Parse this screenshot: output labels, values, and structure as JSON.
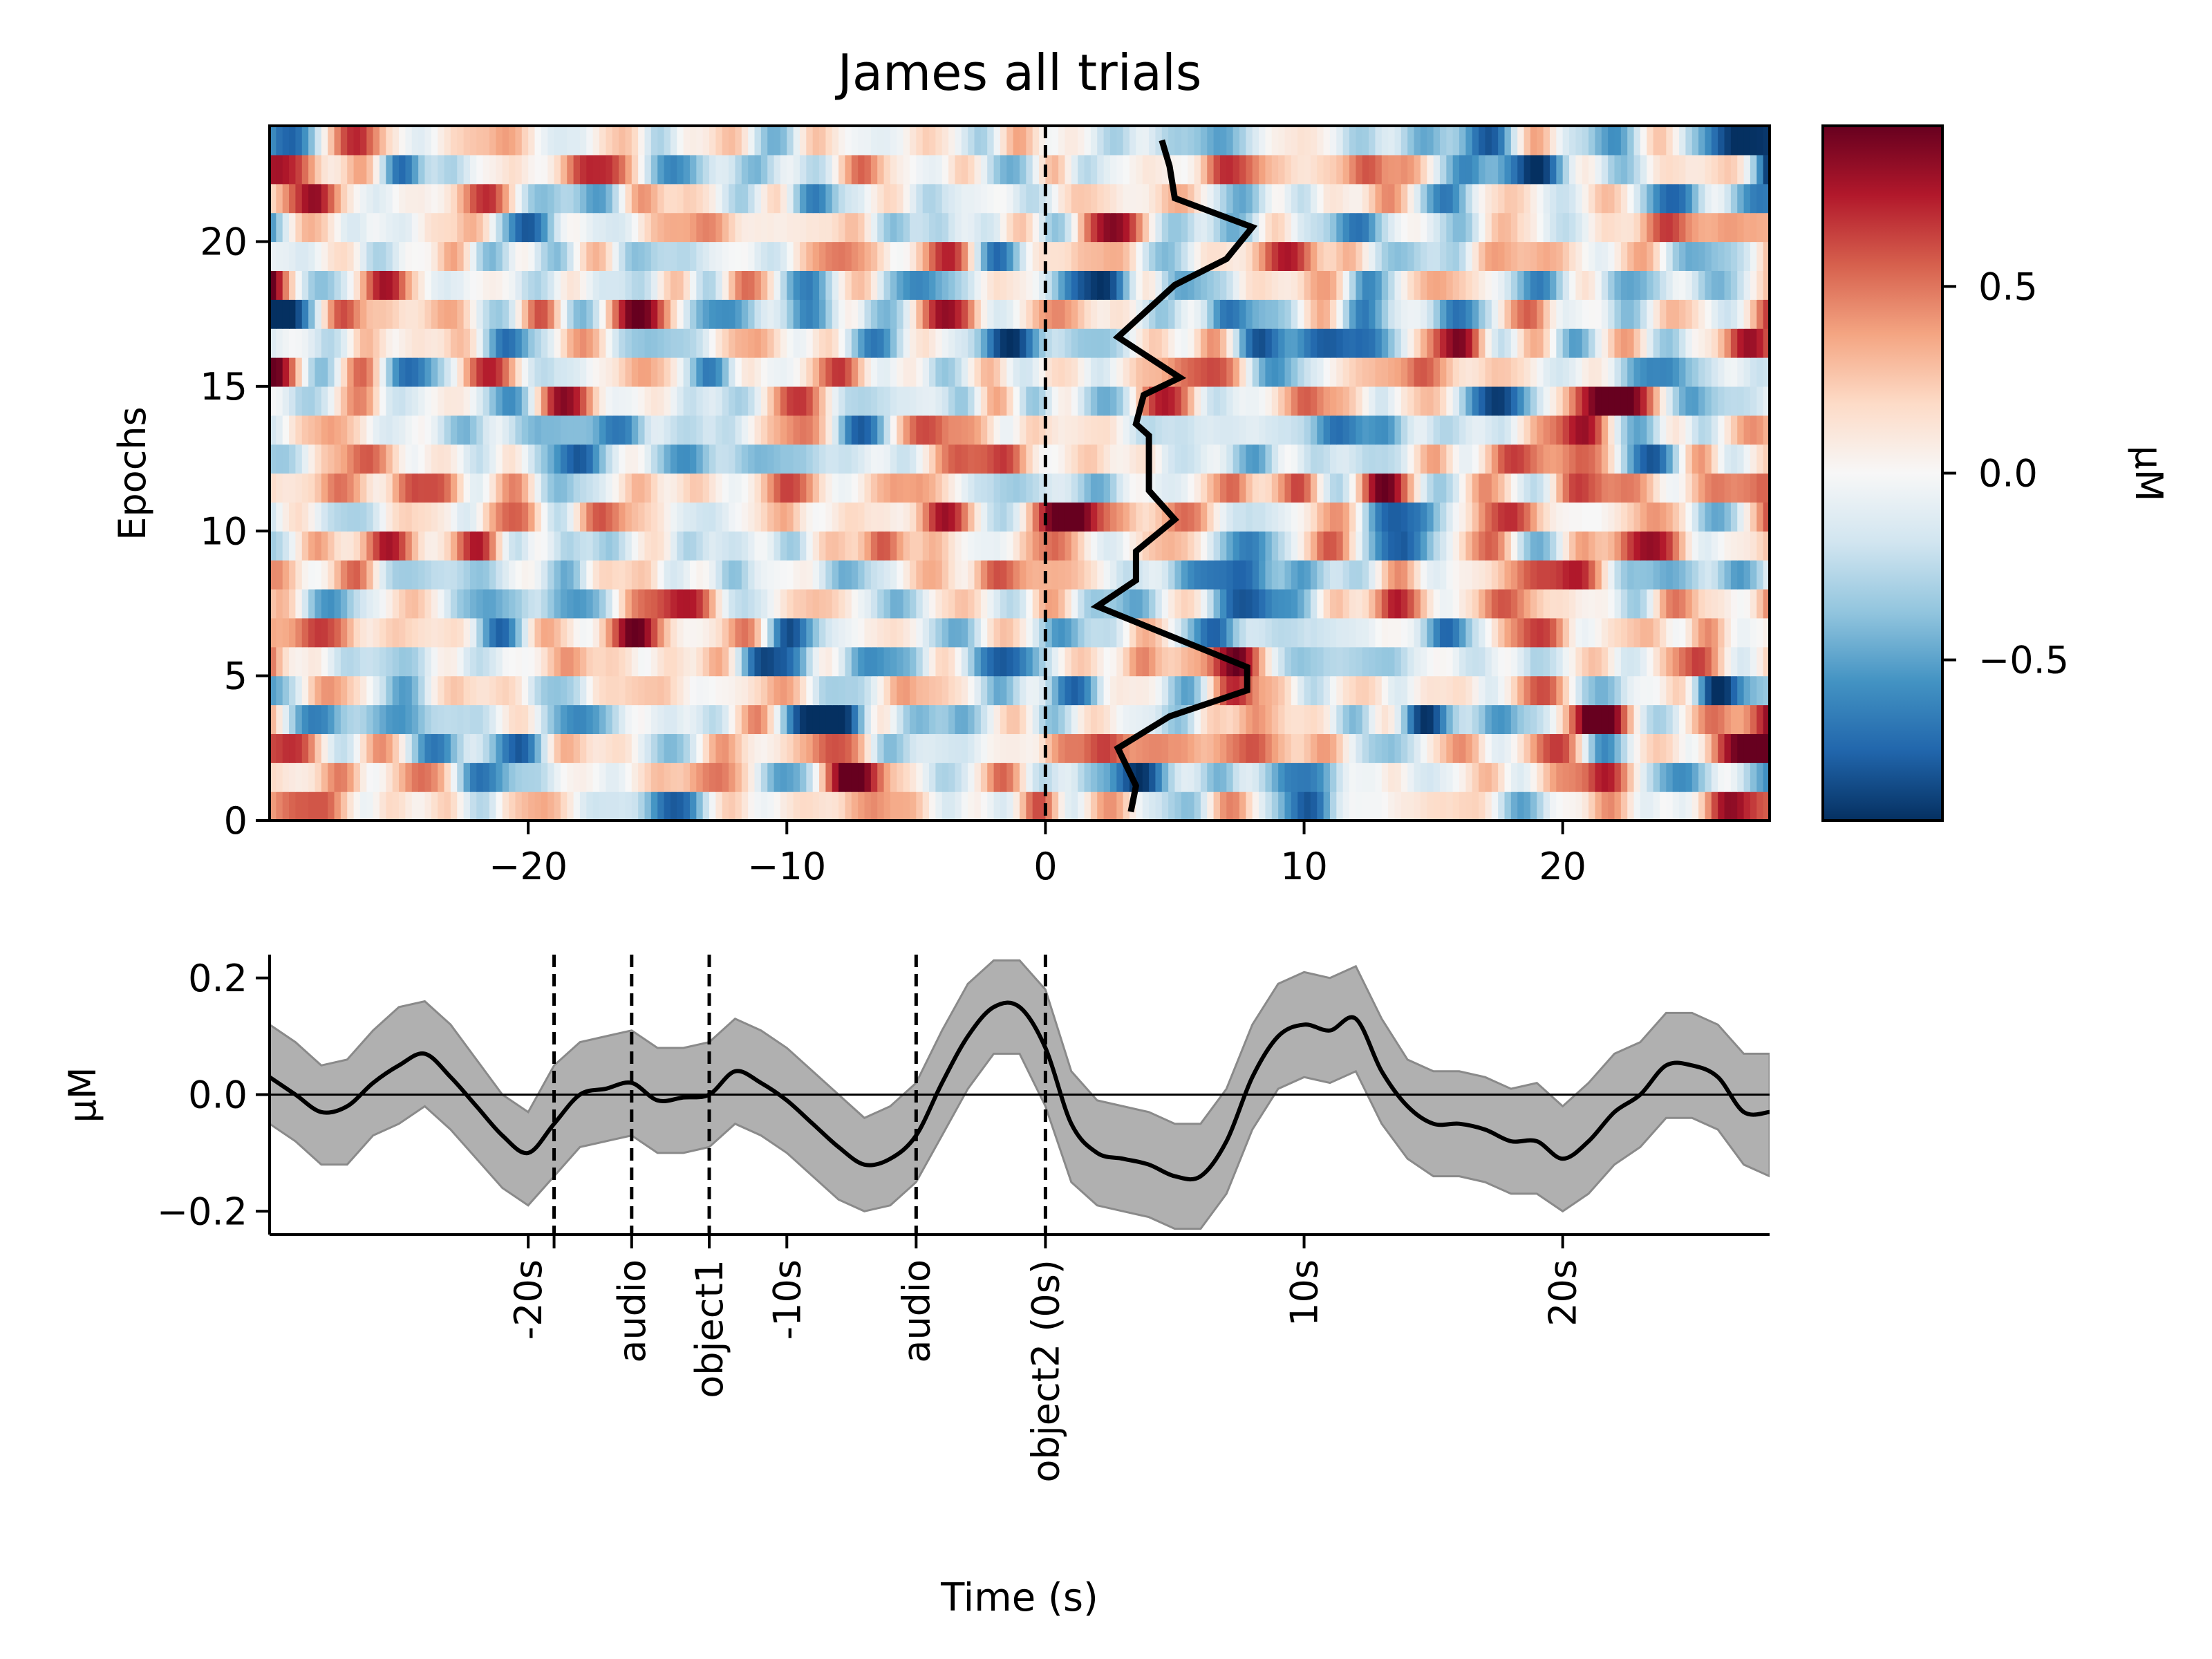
{
  "chart_data": [
    {
      "type": "heatmap",
      "title": "James all trials",
      "xlabel": "",
      "ylabel": "Epochs",
      "xlim": [
        -30,
        28
      ],
      "ylim": [
        0,
        24
      ],
      "x_ticks": [
        -20,
        -10,
        0,
        10,
        20
      ],
      "x_tick_labels": [
        "−20",
        "−10",
        "0",
        "10",
        "20"
      ],
      "y_ticks": [
        0,
        5,
        10,
        15,
        20
      ],
      "y_tick_labels": [
        "0",
        "5",
        "10",
        "15",
        "20"
      ],
      "n_epochs": 24,
      "colormap": "RdBu_r",
      "colorbar": {
        "label": "µM",
        "range": [
          -0.93,
          0.93
        ],
        "ticks": [
          0.5,
          0.0,
          -0.5
        ],
        "tick_labels": [
          "0.5",
          "0.0",
          "−0.5"
        ]
      },
      "event_line_x": 0,
      "overlay_line": {
        "points": [
          [
            3.3,
            0.3
          ],
          [
            3.5,
            1.2
          ],
          [
            2.8,
            2.5
          ],
          [
            4.8,
            3.6
          ],
          [
            7.8,
            4.5
          ],
          [
            7.8,
            5.3
          ],
          [
            2.0,
            7.4
          ],
          [
            3.5,
            8.3
          ],
          [
            3.5,
            9.3
          ],
          [
            5.0,
            10.4
          ],
          [
            4.0,
            11.4
          ],
          [
            4.0,
            13.3
          ],
          [
            3.5,
            13.7
          ],
          [
            3.8,
            14.7
          ],
          [
            5.2,
            15.3
          ],
          [
            2.8,
            16.7
          ],
          [
            5.0,
            18.5
          ],
          [
            7.0,
            19.4
          ],
          [
            8.0,
            20.5
          ],
          [
            5.0,
            21.5
          ],
          [
            4.8,
            22.6
          ],
          [
            4.5,
            23.5
          ]
        ]
      }
    },
    {
      "type": "line",
      "title": "",
      "xlabel": "Time (s)",
      "ylabel": "µM",
      "xlim": [
        -30,
        28
      ],
      "ylim": [
        -0.24,
        0.24
      ],
      "y_ticks": [
        0.2,
        0.0,
        -0.2
      ],
      "y_tick_labels": [
        "0.2",
        "0.0",
        "−0.2"
      ],
      "x_ticks": [
        {
          "x": -20,
          "label": "-20s"
        },
        {
          "x": -19,
          "label": ""
        },
        {
          "x": -16,
          "label": "audio"
        },
        {
          "x": -13,
          "label": "object1"
        },
        {
          "x": -10,
          "label": "-10s"
        },
        {
          "x": -5,
          "label": "audio"
        },
        {
          "x": 0,
          "label": "object2 (0s)"
        },
        {
          "x": 10,
          "label": "10s"
        },
        {
          "x": 20,
          "label": "20s"
        }
      ],
      "event_lines_x": [
        -19,
        -16,
        -13,
        -5,
        0
      ],
      "zero_line": 0,
      "series": [
        {
          "x": [
            -30,
            -29,
            -28,
            -27,
            -26,
            -25,
            -24,
            -23,
            -22,
            -21,
            -20,
            -19,
            -18,
            -17,
            -16,
            -15,
            -14,
            -13,
            -12,
            -11,
            -10,
            -9,
            -8,
            -7,
            -6,
            -5,
            -4,
            -3,
            -2,
            -1,
            0,
            1,
            2,
            3,
            4,
            5,
            6,
            7,
            8,
            9,
            10,
            11,
            12,
            13,
            14,
            15,
            16,
            17,
            18,
            19,
            20,
            21,
            22,
            23,
            24,
            25,
            26,
            27,
            28
          ],
          "mean": [
            0.03,
            0.0,
            -0.03,
            -0.02,
            0.02,
            0.05,
            0.07,
            0.03,
            -0.02,
            -0.07,
            -0.1,
            -0.05,
            0.0,
            0.01,
            0.02,
            -0.01,
            -0.005,
            0.0,
            0.04,
            0.02,
            -0.01,
            -0.05,
            -0.09,
            -0.12,
            -0.11,
            -0.07,
            0.02,
            0.1,
            0.15,
            0.15,
            0.08,
            -0.05,
            -0.1,
            -0.11,
            -0.12,
            -0.14,
            -0.14,
            -0.08,
            0.03,
            0.1,
            0.12,
            0.11,
            0.13,
            0.04,
            -0.02,
            -0.05,
            -0.05,
            -0.06,
            -0.08,
            -0.08,
            -0.11,
            -0.08,
            -0.03,
            0.0,
            0.05,
            0.05,
            0.03,
            -0.03,
            -0.03
          ],
          "upper": [
            0.12,
            0.09,
            0.05,
            0.06,
            0.11,
            0.15,
            0.16,
            0.12,
            0.06,
            0.0,
            -0.03,
            0.05,
            0.09,
            0.1,
            0.11,
            0.08,
            0.08,
            0.09,
            0.13,
            0.11,
            0.08,
            0.04,
            0.0,
            -0.04,
            -0.02,
            0.02,
            0.11,
            0.19,
            0.23,
            0.23,
            0.18,
            0.04,
            -0.01,
            -0.02,
            -0.03,
            -0.05,
            -0.05,
            0.01,
            0.12,
            0.19,
            0.21,
            0.2,
            0.22,
            0.13,
            0.06,
            0.04,
            0.04,
            0.03,
            0.01,
            0.02,
            -0.02,
            0.02,
            0.07,
            0.09,
            0.14,
            0.14,
            0.12,
            0.07,
            0.07
          ],
          "lower": [
            -0.05,
            -0.08,
            -0.12,
            -0.12,
            -0.07,
            -0.05,
            -0.02,
            -0.06,
            -0.11,
            -0.16,
            -0.19,
            -0.14,
            -0.09,
            -0.08,
            -0.07,
            -0.1,
            -0.1,
            -0.09,
            -0.05,
            -0.07,
            -0.1,
            -0.14,
            -0.18,
            -0.2,
            -0.19,
            -0.15,
            -0.07,
            0.01,
            0.07,
            0.07,
            -0.02,
            -0.15,
            -0.19,
            -0.2,
            -0.21,
            -0.23,
            -0.23,
            -0.17,
            -0.06,
            0.01,
            0.03,
            0.02,
            0.04,
            -0.05,
            -0.11,
            -0.14,
            -0.14,
            -0.15,
            -0.17,
            -0.17,
            -0.2,
            -0.17,
            -0.12,
            -0.09,
            -0.04,
            -0.04,
            -0.06,
            -0.12,
            -0.14
          ]
        }
      ]
    }
  ]
}
